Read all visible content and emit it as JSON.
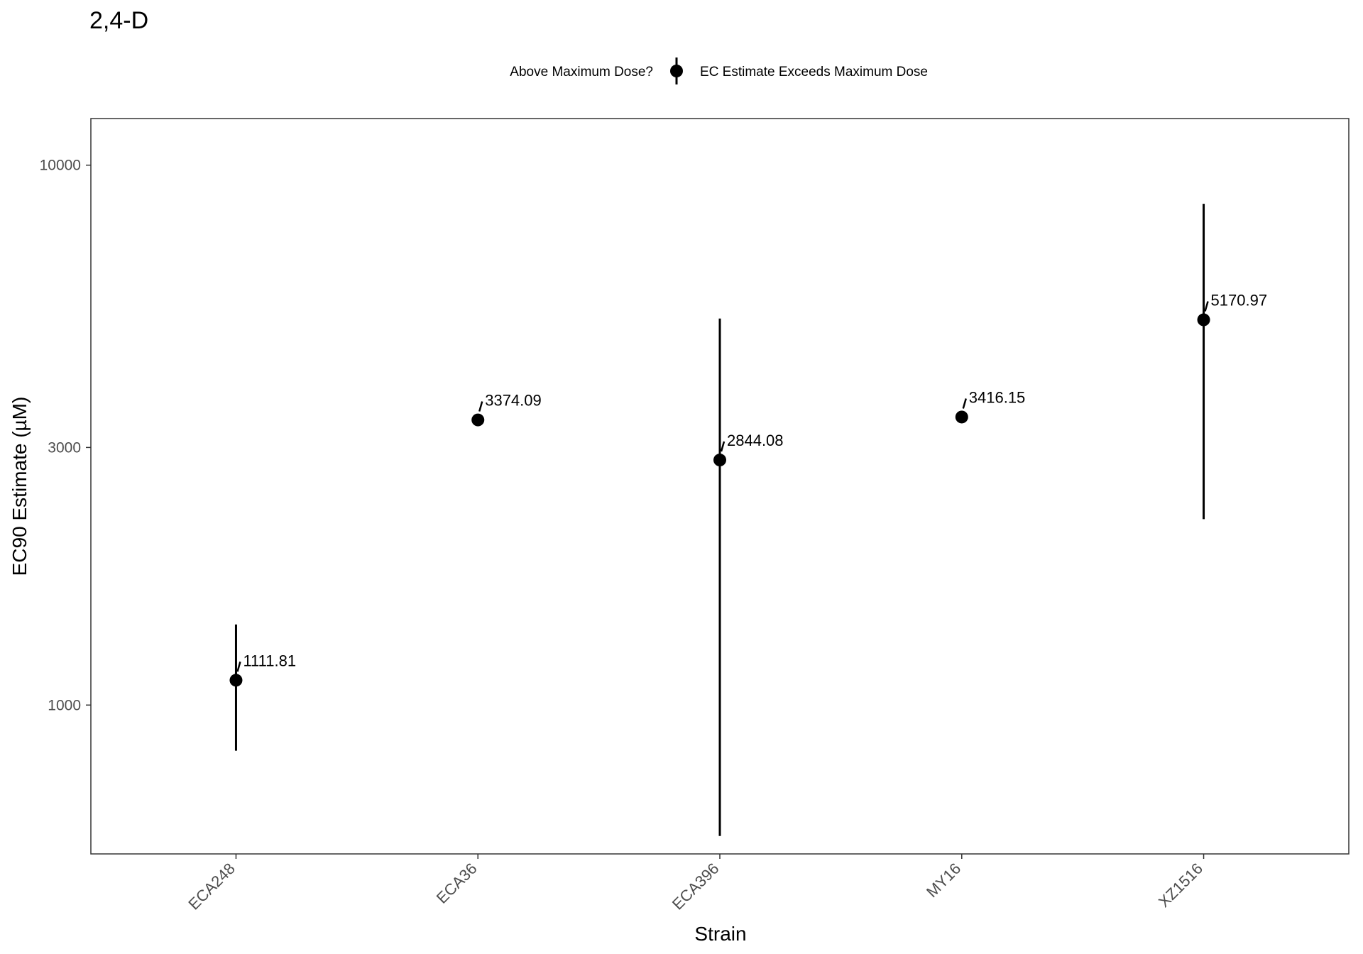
{
  "chart_data": {
    "type": "scatter",
    "title": "2,4-D",
    "xlabel": "Strain",
    "ylabel": "EC90 Estimate (µM)",
    "y_scale": "log10",
    "ylim": [
      530,
      12200
    ],
    "yticks": [
      {
        "value": 1000,
        "label": "1000"
      },
      {
        "value": 3000,
        "label": "3000"
      },
      {
        "value": 10000,
        "label": "10000"
      }
    ],
    "grid": false,
    "legend": {
      "position": "top",
      "title": "Above Maximum Dose?",
      "entries": [
        "EC Estimate Exceeds Maximum Dose"
      ]
    },
    "categories": [
      "ECA248",
      "ECA36",
      "ECA396",
      "MY16",
      "XZ1516"
    ],
    "points": [
      {
        "strain": "ECA248",
        "value": 1111.81,
        "label": "1111.81",
        "lower": 823,
        "upper": 1410
      },
      {
        "strain": "ECA36",
        "value": 3374.09,
        "label": "3374.09",
        "lower": null,
        "upper": null
      },
      {
        "strain": "ECA396",
        "value": 2844.08,
        "label": "2844.08",
        "lower": 572,
        "upper": 5200
      },
      {
        "strain": "MY16",
        "value": 3416.15,
        "label": "3416.15",
        "lower": null,
        "upper": null
      },
      {
        "strain": "XZ1516",
        "value": 5170.97,
        "label": "5170.97",
        "lower": 2210,
        "upper": 8480
      }
    ],
    "colors": {
      "point": "#000000",
      "panel_border": "#333333",
      "tick_text": "#4d4d4d"
    }
  }
}
